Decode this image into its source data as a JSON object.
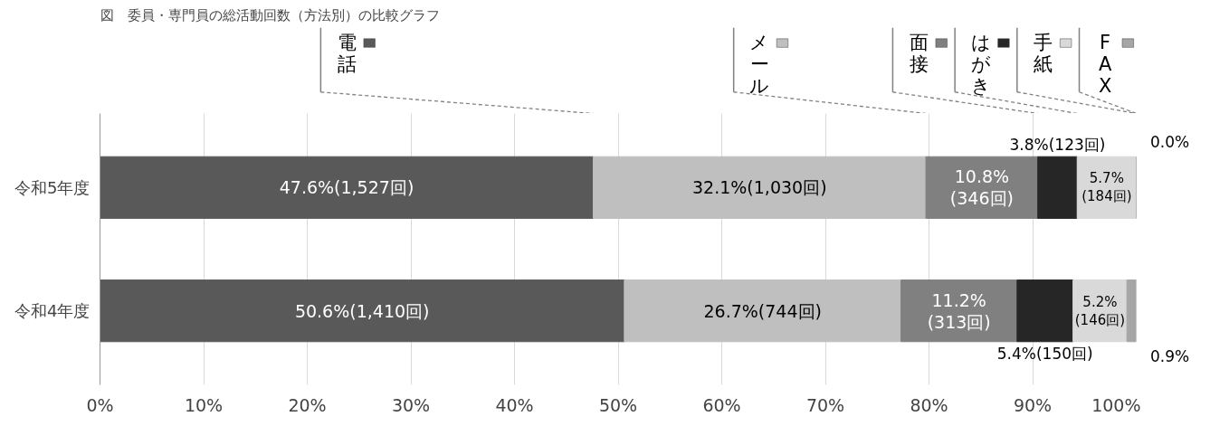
{
  "chart_data": {
    "type": "bar",
    "orientation": "horizontal",
    "stacked": true,
    "title": "図　委員・専門員の総活動回数（方法別）の比較グラフ",
    "categories": [
      "令和5年度",
      "令和4年度"
    ],
    "series": [
      {
        "name": "電話",
        "color": "#595959",
        "values": [
          47.6,
          50.6
        ],
        "value_labels": [
          "47.6%(1,527回)",
          "50.6%(1,410回)"
        ]
      },
      {
        "name": "メール",
        "color": "#bfbfbf",
        "values": [
          32.1,
          26.7
        ],
        "value_labels": [
          "32.1%(1,030回)",
          "26.7%(744回)"
        ]
      },
      {
        "name": "面接",
        "color": "#808080",
        "values": [
          10.8,
          11.2
        ],
        "value_labels": [
          "10.8%(346回)",
          "11.2%(313回)"
        ]
      },
      {
        "name": "はがき",
        "color": "#262626",
        "values": [
          3.8,
          5.4
        ],
        "value_labels": [
          "3.8%(123回)",
          "5.4%(150回)"
        ]
      },
      {
        "name": "手紙",
        "color": "#d9d9d9",
        "values": [
          5.7,
          5.2
        ],
        "value_labels": [
          "5.7%(184回)",
          "5.2%(146回)"
        ]
      },
      {
        "name": "FAX",
        "color": "#a6a6a6",
        "values": [
          0.0,
          0.9
        ],
        "value_labels": [
          "0.0%",
          "0.9%"
        ]
      }
    ],
    "xlim": [
      0,
      100
    ],
    "xticks": [
      {
        "value": 0,
        "label": "0%"
      },
      {
        "value": 10,
        "label": "10%"
      },
      {
        "value": 20,
        "label": "20%"
      },
      {
        "value": 30,
        "label": "30%"
      },
      {
        "value": 40,
        "label": "40%"
      },
      {
        "value": 50,
        "label": "50%"
      },
      {
        "value": 60,
        "label": "60%"
      },
      {
        "value": 70,
        "label": "70%"
      },
      {
        "value": 80,
        "label": "80%"
      },
      {
        "value": 90,
        "label": "90%"
      },
      {
        "value": 100,
        "label": "100%"
      }
    ],
    "grid": "x",
    "legend": "top"
  }
}
